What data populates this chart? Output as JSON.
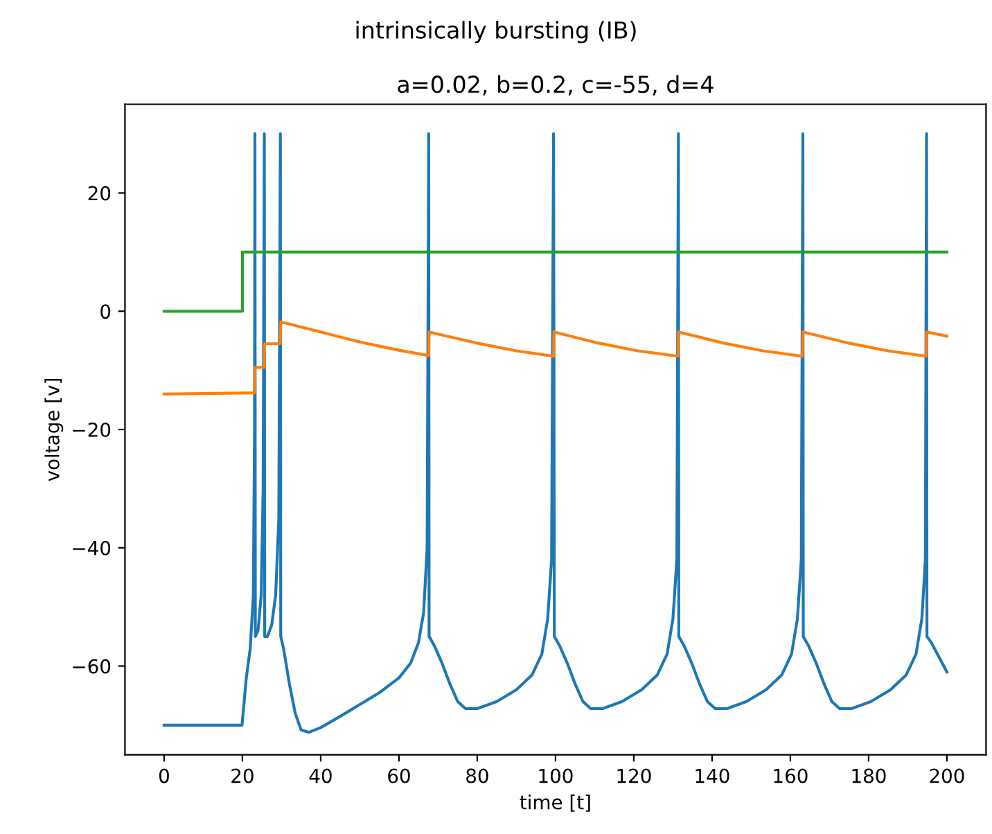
{
  "chart_data": {
    "type": "line",
    "title": "intrinsically bursting (IB)",
    "subtitle": "a=0.02, b=0.2, c=-55, d=4",
    "xlabel": "time [t]",
    "ylabel": "voltage [v]",
    "xlim": [
      -10,
      210
    ],
    "ylim": [
      -75,
      35
    ],
    "xticks": [
      0,
      20,
      40,
      60,
      80,
      100,
      120,
      140,
      160,
      180,
      200
    ],
    "yticks": [
      {
        "value": -60,
        "label": "−60"
      },
      {
        "value": -40,
        "label": "−40"
      },
      {
        "value": -20,
        "label": "−20"
      },
      0,
      20
    ],
    "grid": false,
    "marker": "none",
    "line_style": "solid",
    "series": [
      {
        "color": "#1f77b4",
        "x": [
          0,
          19.9,
          21,
          22,
          22.8,
          23.1,
          23.2,
          23.3,
          24,
          24.8,
          25.3,
          25.6,
          25.7,
          26.4,
          27.5,
          28.5,
          29.3,
          29.7,
          29.8,
          30.5,
          32,
          33.5,
          35,
          37,
          40,
          45,
          50,
          55,
          60,
          63,
          65,
          66.3,
          67.2,
          67.6,
          67.7,
          69,
          71,
          73,
          75,
          77,
          80,
          85,
          90,
          94,
          96.5,
          98,
          99,
          99.5,
          99.7,
          101,
          103,
          105,
          107,
          109,
          112,
          117,
          122,
          126,
          128.5,
          130,
          131,
          131.4,
          131.5,
          132.8,
          134.8,
          136.8,
          138.8,
          140.8,
          143.8,
          148.8,
          153.8,
          157.8,
          160.3,
          161.8,
          162.8,
          163.2,
          163.3,
          164.6,
          166.6,
          168.6,
          170.6,
          172.6,
          175.6,
          180.6,
          185.6,
          189.6,
          192.1,
          193.6,
          194.5,
          194.8,
          194.9,
          196,
          198,
          200
        ],
        "values": [
          -70,
          -70,
          -62,
          -57,
          -48,
          -20,
          30,
          -55,
          -54,
          -48,
          -30,
          30,
          -55,
          -55,
          -53,
          -48,
          -35,
          30,
          -55,
          -57,
          -63,
          -68,
          -70.8,
          -71.2,
          -70.4,
          -68.5,
          -66.5,
          -64.5,
          -62,
          -59.5,
          -56,
          -51,
          -40,
          30,
          -55,
          -56.5,
          -59.5,
          -63,
          -66,
          -67.2,
          -67.2,
          -66,
          -64,
          -61.5,
          -58,
          -52,
          -42,
          30,
          -55,
          -56.5,
          -59.5,
          -63,
          -66,
          -67.2,
          -67.2,
          -66,
          -64,
          -61.5,
          -58,
          -52,
          -42,
          30,
          -55,
          -56.5,
          -59.5,
          -63,
          -66,
          -67.2,
          -67.2,
          -66,
          -64,
          -61.5,
          -58,
          -52,
          -42,
          30,
          -55,
          -56.5,
          -59.5,
          -63,
          -66,
          -67.2,
          -67.2,
          -66,
          -64,
          -61.5,
          -58,
          -52,
          -42,
          30,
          -55,
          -56,
          -58.5,
          -61
        ]
      },
      {
        "color": "#ff7f0e",
        "x": [
          0,
          23.1,
          23.2,
          25.6,
          25.7,
          29.7,
          29.8,
          40,
          50,
          60,
          67.6,
          67.7,
          80,
          90,
          99.5,
          99.6,
          111,
          121,
          131.3,
          131.4,
          143,
          153,
          163.1,
          163.2,
          175,
          185,
          194.7,
          194.8,
          200
        ],
        "values": [
          -14,
          -13.8,
          -9.5,
          -9.5,
          -5.5,
          -5.5,
          -1.8,
          -3.5,
          -5.2,
          -6.6,
          -7.5,
          -3.5,
          -5.4,
          -6.7,
          -7.6,
          -3.5,
          -5.4,
          -6.7,
          -7.6,
          -3.5,
          -5.4,
          -6.7,
          -7.6,
          -3.5,
          -5.4,
          -6.7,
          -7.6,
          -3.5,
          -4.2
        ]
      },
      {
        "color": "#2ca02c",
        "x": [
          0,
          20,
          20,
          200
        ],
        "values": [
          0,
          0,
          10,
          10
        ]
      }
    ]
  }
}
